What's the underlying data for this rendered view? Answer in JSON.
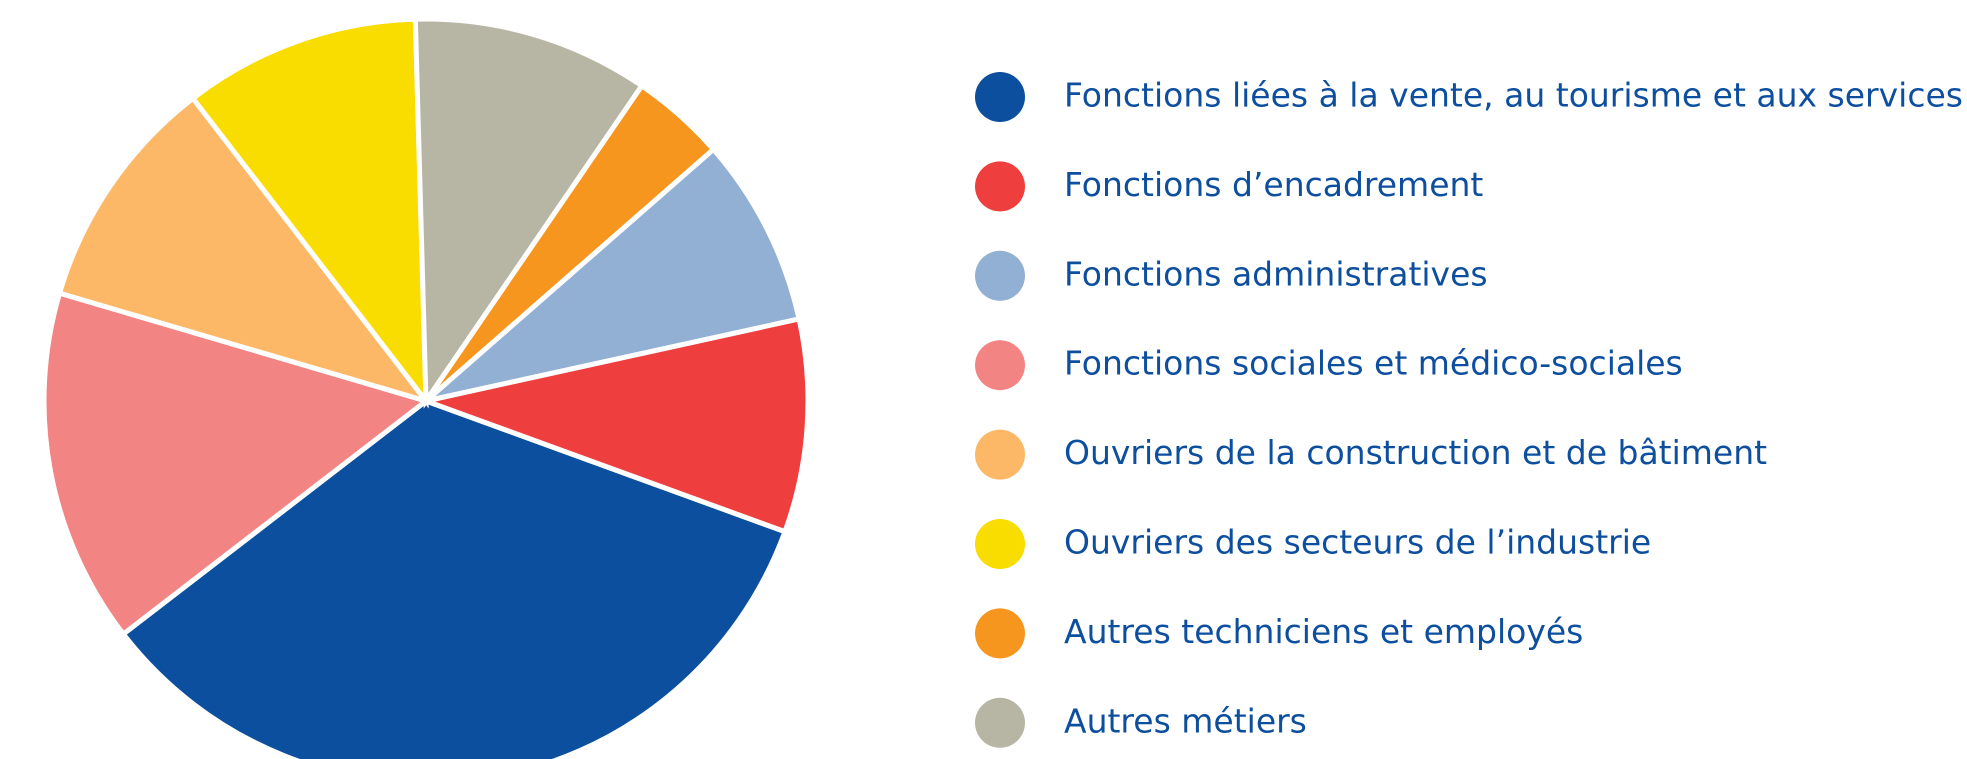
{
  "chart_data": {
    "type": "pie",
    "categories": [
      "Fonctions liées à la vente, au tourisme et aux services",
      "Fonctions d’encadrement",
      "Fonctions administratives",
      "Fonctions sociales et médico-sociales",
      "Ouvriers de la construction et de bâtiment",
      "Ouvriers des secteurs de l’industrie",
      "Autres techniciens et employés",
      "Autres métiers"
    ],
    "values": [
      34,
      9,
      8,
      15,
      10,
      10,
      4,
      10
    ],
    "colors": [
      "#0c4f9e",
      "#ef3e3e",
      "#92afd4",
      "#f28583",
      "#fdb867",
      "#f9dc00",
      "#f6961e",
      "#b7b6a4"
    ],
    "legend": "right"
  }
}
